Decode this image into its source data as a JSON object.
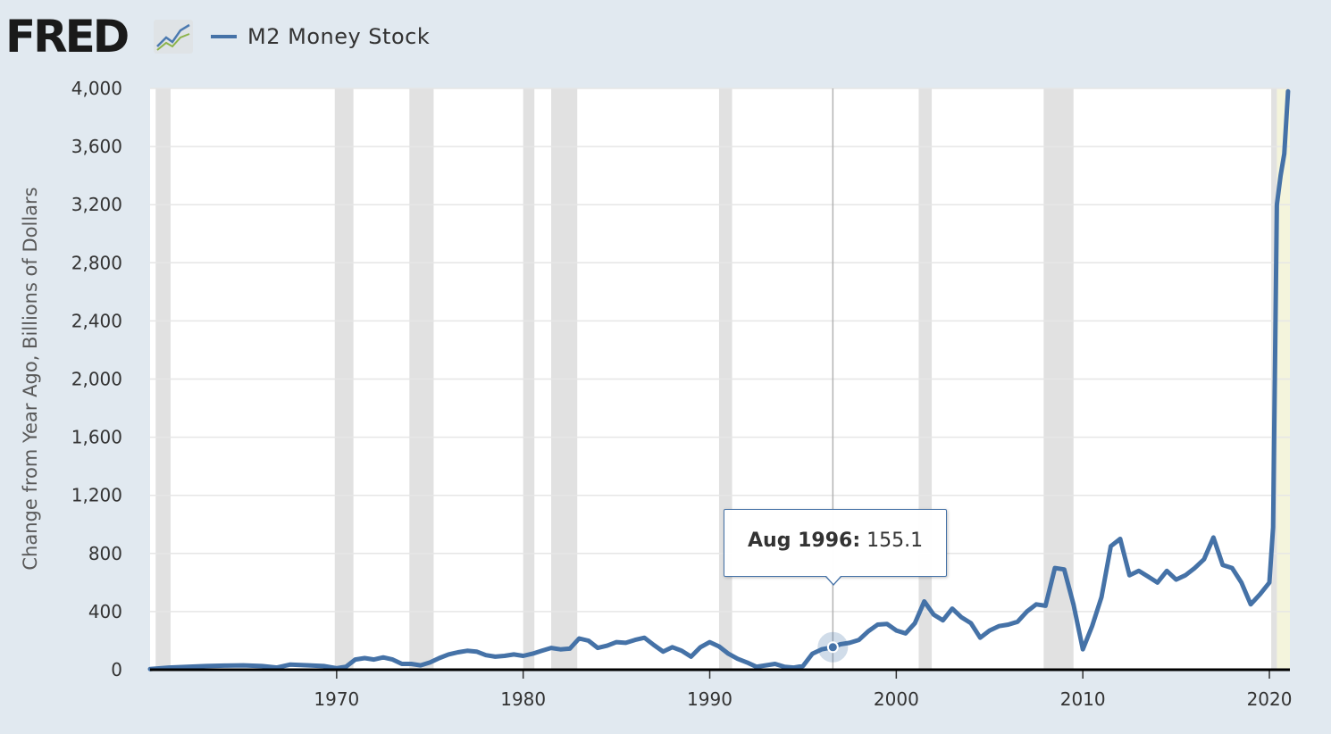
{
  "header": {
    "logo_text": "FRED",
    "legend_label": "M2 Money Stock"
  },
  "colors": {
    "background": "#e1e9f0",
    "plot_background": "#ffffff",
    "series_line": "#4572a7",
    "recession_band": "#e1e1e1",
    "highlight_band": "#f4f4dc",
    "gridline": "#e6e6e6"
  },
  "tooltip": {
    "date": "Aug 1996:",
    "value": "155.1"
  },
  "chart_data": {
    "type": "line",
    "title": "",
    "xlabel": "",
    "ylabel": "Change from Year Ago, Billions of Dollars",
    "xlim": [
      1960.0,
      2021.1
    ],
    "ylim": [
      0,
      4000
    ],
    "y_ticks": [
      0,
      400,
      800,
      1200,
      1600,
      2000,
      2400,
      2800,
      3200,
      3600,
      4000
    ],
    "y_tick_labels": [
      "0",
      "400",
      "800",
      "1,200",
      "1,600",
      "2,000",
      "2,400",
      "2,800",
      "3,200",
      "3,600",
      "4,000"
    ],
    "x_ticks": [
      1970,
      1980,
      1990,
      2000,
      2010,
      2020
    ],
    "x_tick_labels": [
      "1970",
      "1980",
      "1990",
      "2000",
      "2010",
      "2020"
    ],
    "grid": true,
    "legend_position": "top-left",
    "recessions": [
      [
        1960.3,
        1961.1
      ],
      [
        1969.9,
        1970.9
      ],
      [
        1973.9,
        1975.2
      ],
      [
        1980.0,
        1980.6
      ],
      [
        1981.5,
        1982.9
      ],
      [
        1990.5,
        1991.2
      ],
      [
        2001.2,
        2001.9
      ],
      [
        2007.9,
        2009.5
      ],
      [
        2020.1,
        2020.4
      ]
    ],
    "highlight_region": [
      2020.1,
      2021.1
    ],
    "hover_point": {
      "x": 1996.6,
      "y": 155.1
    },
    "series": [
      {
        "name": "M2 Money Stock",
        "x": [
          1960.0,
          1961.0,
          1962.0,
          1963.0,
          1964.0,
          1965.0,
          1966.0,
          1966.8,
          1967.5,
          1968.5,
          1969.3,
          1970.0,
          1970.5,
          1971.0,
          1971.5,
          1972.0,
          1972.5,
          1973.0,
          1973.5,
          1974.0,
          1974.5,
          1975.0,
          1975.5,
          1976.0,
          1976.5,
          1977.0,
          1977.5,
          1978.0,
          1978.5,
          1979.0,
          1979.5,
          1980.0,
          1980.5,
          1981.0,
          1981.5,
          1982.0,
          1982.5,
          1983.0,
          1983.5,
          1984.0,
          1984.5,
          1985.0,
          1985.5,
          1986.0,
          1986.5,
          1987.0,
          1987.5,
          1988.0,
          1988.5,
          1989.0,
          1989.5,
          1990.0,
          1990.5,
          1991.0,
          1991.5,
          1992.0,
          1992.5,
          1993.0,
          1993.5,
          1994.0,
          1994.5,
          1995.0,
          1995.5,
          1996.0,
          1996.6,
          1997.0,
          1997.5,
          1998.0,
          1998.5,
          1999.0,
          1999.5,
          2000.0,
          2000.5,
          2001.0,
          2001.5,
          2002.0,
          2002.5,
          2003.0,
          2003.5,
          2004.0,
          2004.5,
          2005.0,
          2005.5,
          2006.0,
          2006.5,
          2007.0,
          2007.5,
          2008.0,
          2008.5,
          2009.0,
          2009.5,
          2010.0,
          2010.5,
          2011.0,
          2011.5,
          2012.0,
          2012.5,
          2013.0,
          2013.5,
          2014.0,
          2014.5,
          2015.0,
          2015.5,
          2016.0,
          2016.5,
          2017.0,
          2017.5,
          2018.0,
          2018.5,
          2019.0,
          2019.5,
          2020.0,
          2020.2,
          2020.4,
          2020.6,
          2020.8,
          2021.0
        ],
        "values": [
          5,
          15,
          20,
          25,
          28,
          30,
          25,
          15,
          35,
          30,
          25,
          10,
          20,
          70,
          80,
          70,
          85,
          70,
          40,
          40,
          30,
          50,
          80,
          105,
          120,
          130,
          125,
          100,
          90,
          95,
          105,
          95,
          110,
          130,
          150,
          140,
          145,
          215,
          200,
          150,
          165,
          190,
          185,
          205,
          220,
          170,
          125,
          155,
          130,
          90,
          155,
          190,
          160,
          110,
          75,
          50,
          20,
          30,
          40,
          20,
          15,
          25,
          110,
          140,
          155,
          175,
          185,
          205,
          265,
          310,
          315,
          270,
          250,
          320,
          470,
          380,
          340,
          420,
          360,
          320,
          220,
          270,
          300,
          310,
          330,
          400,
          450,
          440,
          700,
          690,
          450,
          140,
          300,
          500,
          850,
          900,
          650,
          680,
          640,
          600,
          680,
          620,
          650,
          700,
          760,
          910,
          720,
          700,
          600,
          450,
          520,
          600,
          980,
          3200,
          3400,
          3550,
          3980
        ]
      }
    ]
  }
}
